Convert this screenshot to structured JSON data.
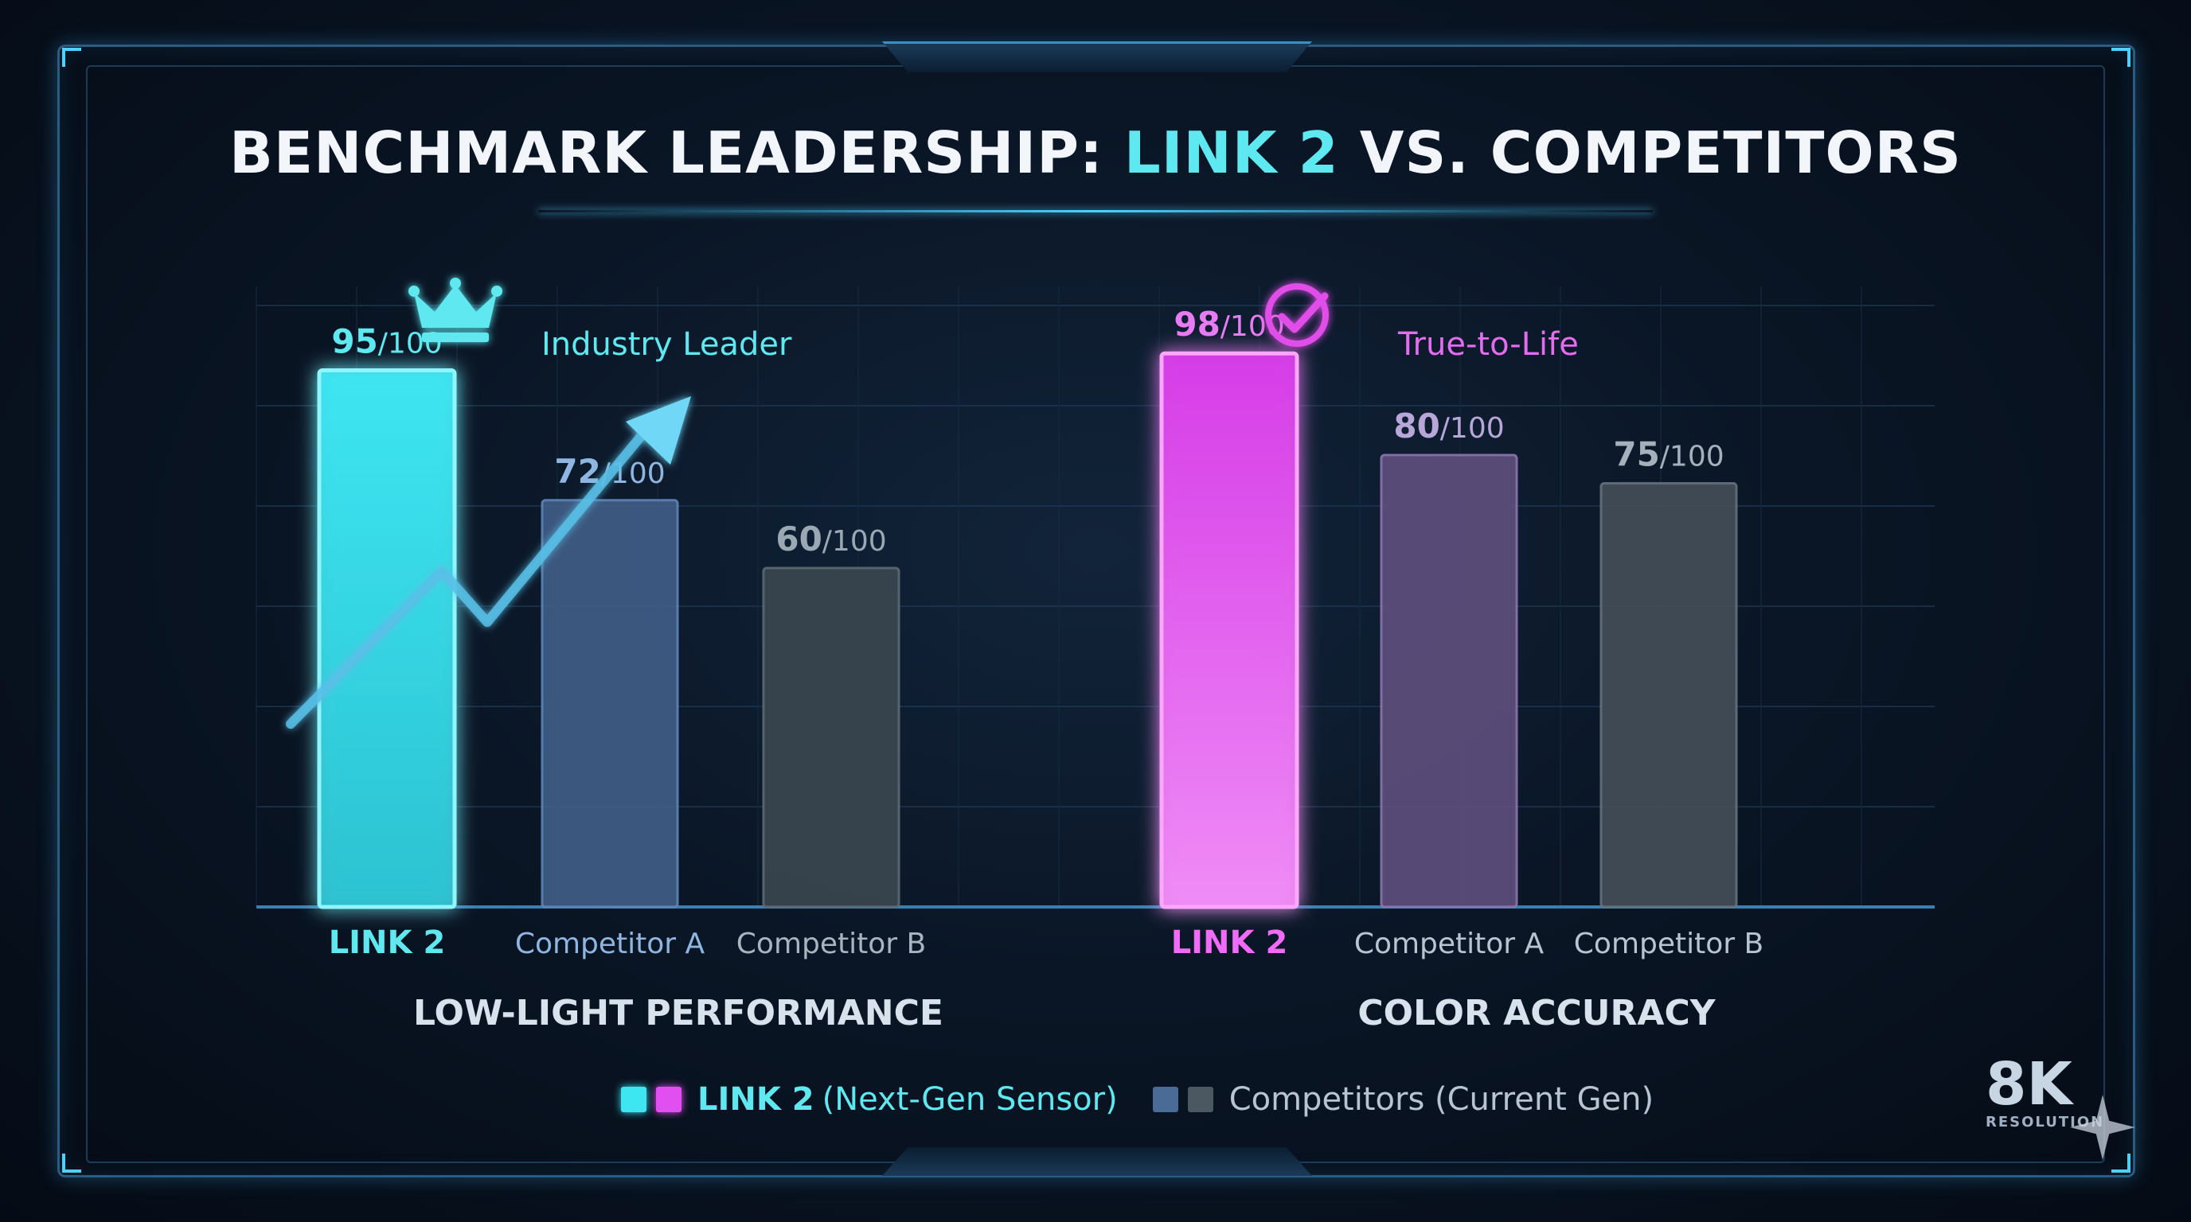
{
  "title": {
    "prefix": "BENCHMARK LEADERSHIP: ",
    "highlight": "LINK 2",
    "suffix": " VS. COMPETITORS"
  },
  "colors": {
    "link2_lowlight": "#3ee6f2",
    "link2_color": "#e24ff0",
    "competitor_a": "#4a6b96",
    "competitor_b": "#4b5862",
    "competitor_a_color_group": "#6b5a8a"
  },
  "chart_data": [
    {
      "type": "bar",
      "title": "LOW-LIGHT PERFORMANCE",
      "categories": [
        "LINK 2",
        "Competitor A",
        "Competitor B"
      ],
      "values": [
        95,
        72,
        60
      ],
      "value_labels": [
        "95",
        "72",
        "60"
      ],
      "value_suffix": "/100",
      "ylim": [
        0,
        100
      ],
      "grid": true,
      "annotation": {
        "text": "Industry Leader",
        "icon": "crown-icon",
        "arrow": "trend-arrow-icon"
      }
    },
    {
      "type": "bar",
      "title": "COLOR ACCURACY",
      "categories": [
        "LINK 2",
        "Competitor A",
        "Competitor B"
      ],
      "values": [
        98,
        80,
        75
      ],
      "value_labels": [
        "98",
        "80",
        "75"
      ],
      "value_suffix": "/100",
      "ylim": [
        0,
        100
      ],
      "grid": true,
      "annotation": {
        "text": "True-to-Life",
        "icon": "check-circle-icon"
      }
    }
  ],
  "legend": {
    "link2_name": "LINK 2",
    "link2_desc": "(Next-Gen Sensor)",
    "competitors_label": "Competitors (Current Gen)",
    "position": "bottom-center"
  },
  "badge": {
    "big": "8K",
    "small": "RESOLUTION"
  }
}
